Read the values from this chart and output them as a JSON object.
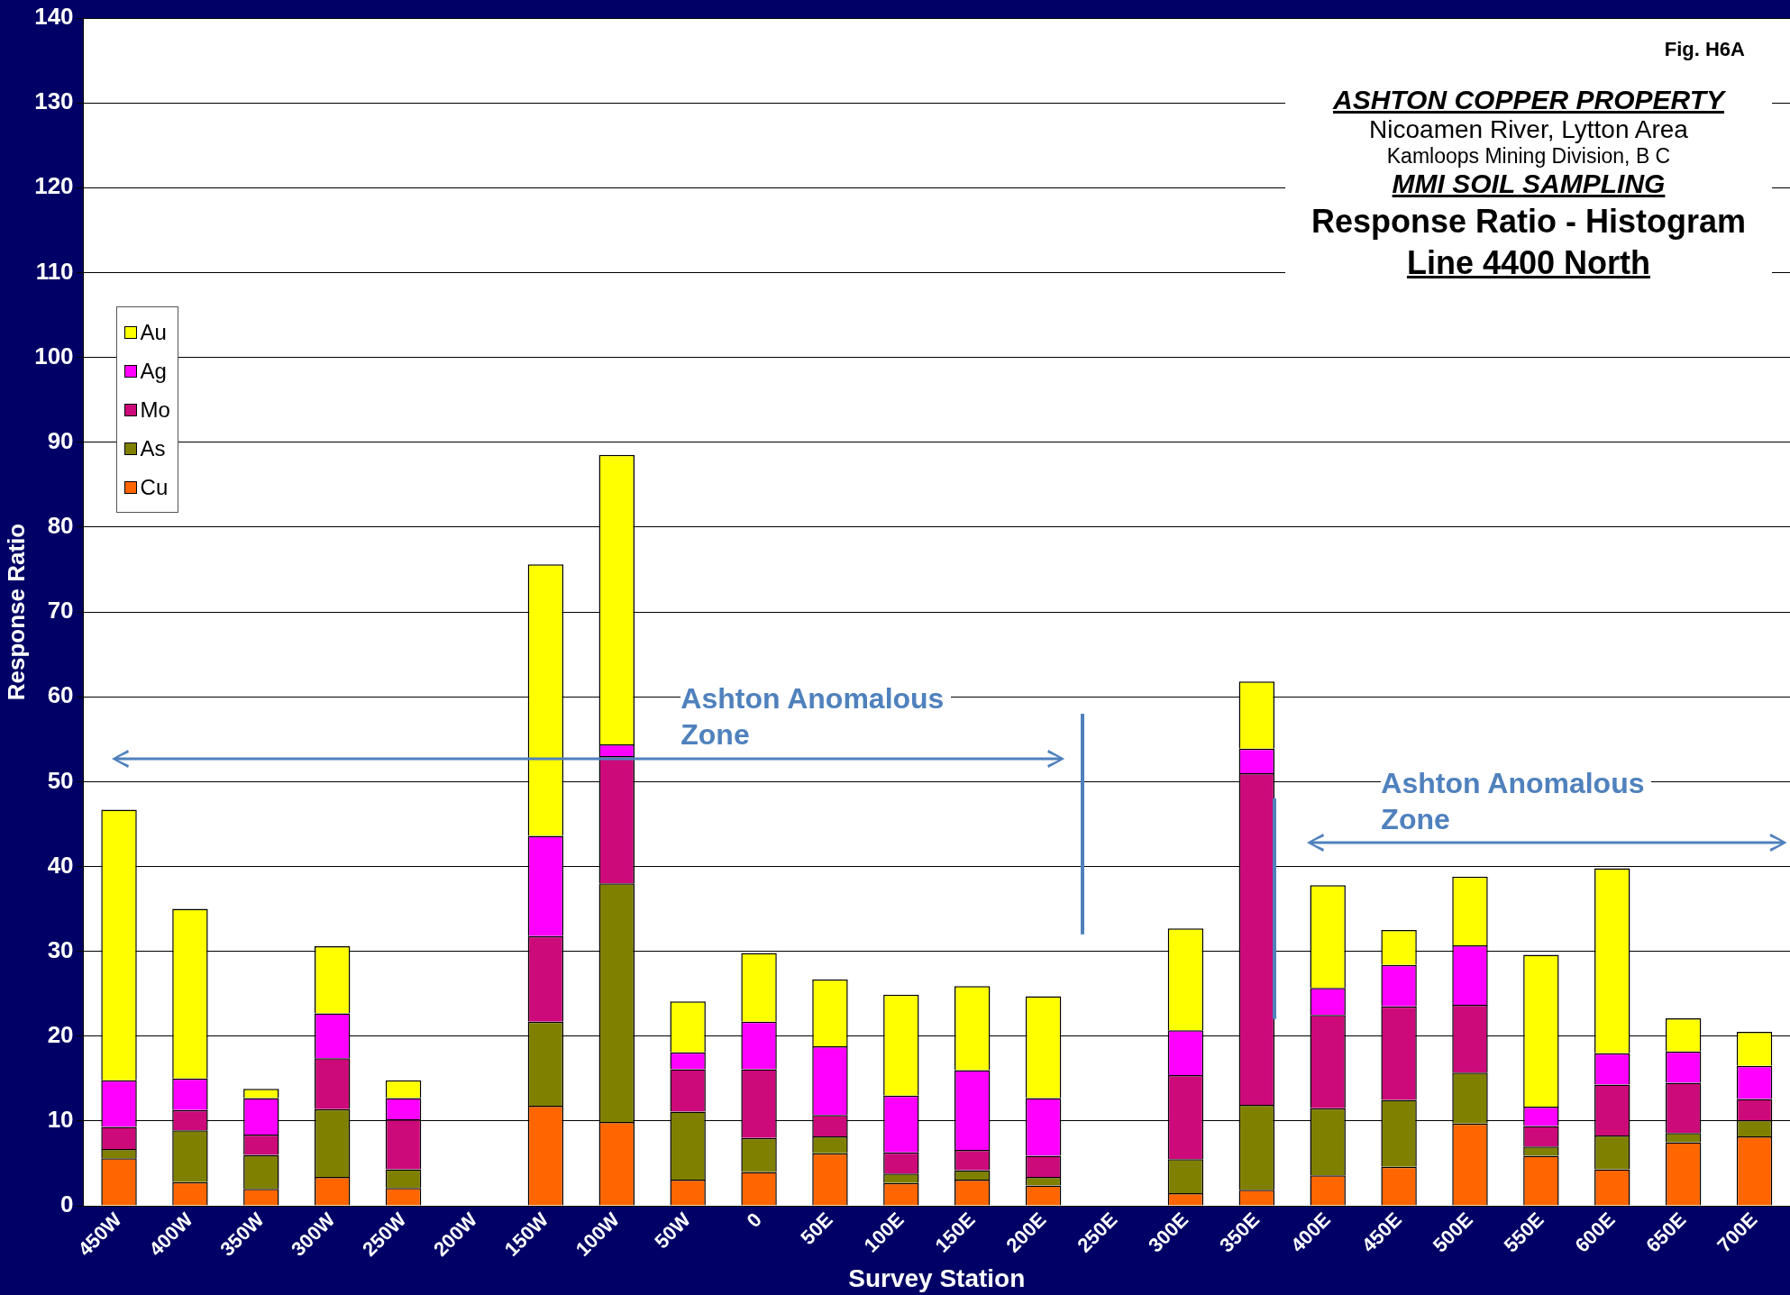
{
  "chart_data": {
    "type": "bar",
    "stacked": true,
    "xlabel": "Survey Station",
    "ylabel": "Response Ratio",
    "title": "Response Ratio - Histogram",
    "subtitle": "Line 4400 North",
    "annotations": [
      "Fig. H6A",
      "ASHTON COPPER PROPERTY",
      "Nicoamen River, Lytton Area",
      "Kamloops Mining Division, B C",
      "MMI SOIL SAMPLING",
      "Ashton Anomalous Zone",
      "Ashton Anomalous Zone"
    ],
    "categories": [
      "450W",
      "400W",
      "350W",
      "300W",
      "250W",
      "200W",
      "150W",
      "100W",
      "50W",
      "0",
      "50E",
      "100E",
      "150E",
      "200E",
      "250E",
      "300E",
      "350E",
      "400E",
      "450E",
      "500E",
      "550E",
      "600E",
      "650E",
      "700E"
    ],
    "series": [
      {
        "name": "Cu",
        "color": "#ff6600",
        "values": [
          5.6,
          2.8,
          2.0,
          3.4,
          2.1,
          0,
          11.8,
          9.9,
          3.1,
          4.0,
          6.2,
          2.7,
          3.1,
          2.4,
          0,
          1.5,
          1.9,
          3.6,
          4.6,
          9.7,
          5.9,
          4.3,
          7.5,
          8.2
        ]
      },
      {
        "name": "As",
        "color": "#808000",
        "values": [
          1.1,
          6.1,
          4.0,
          8.0,
          2.2,
          0,
          9.9,
          28.1,
          8.0,
          4.0,
          2.0,
          1.1,
          1.1,
          1.0,
          0,
          4.0,
          10.0,
          7.9,
          7.9,
          6.0,
          1.1,
          4.0,
          1.1,
          1.9
        ]
      },
      {
        "name": "Mo",
        "color": "#cc0a7a",
        "values": [
          2.6,
          2.4,
          2.4,
          6.0,
          5.9,
          0,
          10.1,
          15.0,
          5.0,
          8.1,
          2.5,
          2.5,
          2.4,
          2.5,
          0,
          9.9,
          39.1,
          11.0,
          11.0,
          8.0,
          2.4,
          6.0,
          5.9,
          2.5
        ]
      },
      {
        "name": "Ag",
        "color": "#ff00ff",
        "values": [
          5.5,
          3.7,
          4.3,
          5.3,
          2.5,
          0,
          11.8,
          1.4,
          2.0,
          5.6,
          8.1,
          6.7,
          9.4,
          6.8,
          0,
          5.3,
          2.9,
          3.2,
          4.9,
          7.0,
          2.3,
          3.7,
          3.7,
          3.9
        ]
      },
      {
        "name": "Au",
        "color": "#ffff00",
        "values": [
          31.9,
          20.0,
          1.1,
          7.9,
          2.1,
          0,
          32.0,
          34.1,
          6.0,
          8.1,
          7.9,
          11.9,
          9.9,
          12.0,
          0,
          12.0,
          7.9,
          12.1,
          4.1,
          8.1,
          17.9,
          21.8,
          3.9,
          4.0
        ]
      }
    ],
    "ylim": [
      0,
      140
    ],
    "yticks": [
      0,
      10,
      20,
      30,
      40,
      50,
      60,
      70,
      80,
      90,
      100,
      110,
      120,
      130,
      140
    ],
    "grid": "y",
    "legend": "top left"
  }
}
